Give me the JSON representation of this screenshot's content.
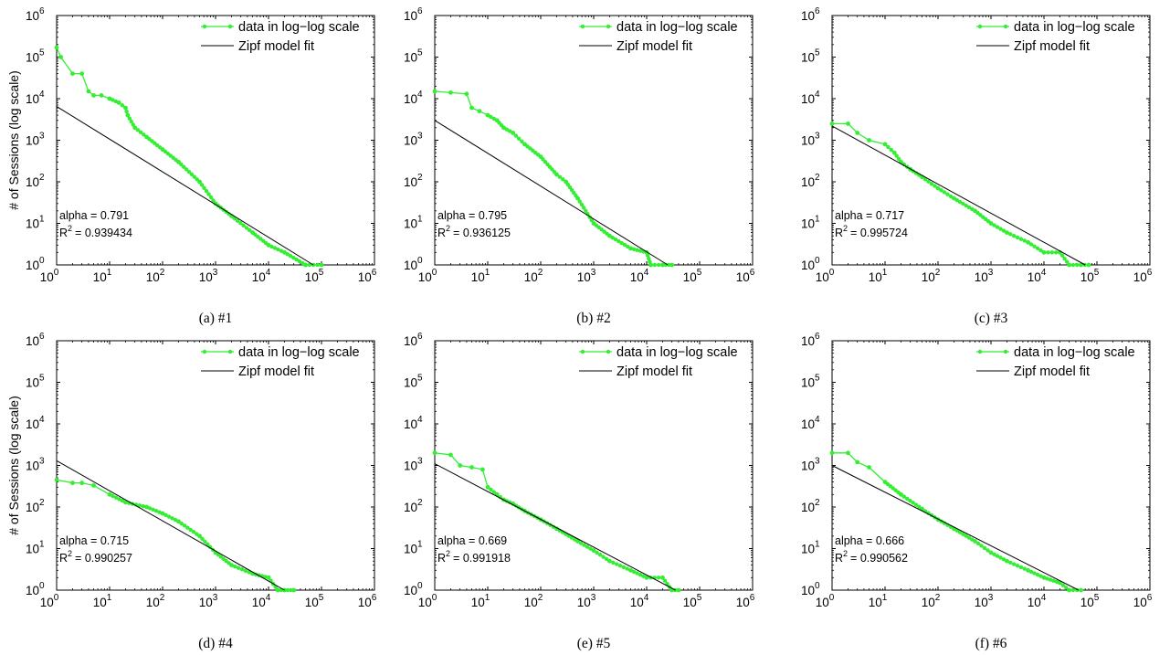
{
  "colors": {
    "data": "#33ee33",
    "fit": "#000000"
  },
  "chart_data": [
    {
      "type": "line",
      "caption": "(a)  #1",
      "scale": "log-log",
      "ylabel": "# of Sessions (log scale)",
      "xlim": [
        1,
        1000000
      ],
      "ylim": [
        1,
        1000000
      ],
      "legend": {
        "placement": "top-right",
        "data_label": "data in log−log scale",
        "fit_label": "Zipf model fit"
      },
      "annotation": {
        "alpha": "alpha = 0.791",
        "r2_prefix": "R",
        "r2_value": "= 0.939434"
      },
      "series": [
        {
          "name": "data in log−log scale",
          "x": [
            1,
            1.2,
            2,
            3,
            4,
            5,
            7,
            10,
            15,
            20,
            22,
            30,
            50,
            100,
            200,
            500,
            1000,
            2000,
            5000,
            10000,
            20000,
            50000,
            100000
          ],
          "y": [
            170000,
            100000,
            40000,
            40000,
            15000,
            12000,
            12000,
            10000,
            8000,
            6000,
            4000,
            2000,
            1200,
            600,
            300,
            100,
            30,
            15,
            6,
            3,
            2,
            1,
            1
          ]
        },
        {
          "name": "Zipf model fit",
          "x": [
            1,
            70000
          ],
          "y": [
            6500,
            1
          ]
        }
      ]
    },
    {
      "type": "line",
      "caption": "(b)  #2",
      "scale": "log-log",
      "ylabel": "",
      "xlim": [
        1,
        1000000
      ],
      "ylim": [
        1,
        1000000
      ],
      "legend": {
        "placement": "top-right",
        "data_label": "data in log−log scale",
        "fit_label": "Zipf model fit"
      },
      "annotation": {
        "alpha": "alpha = 0.795",
        "r2_prefix": "R",
        "r2_value": "= 0.936125"
      },
      "series": [
        {
          "name": "data in log−log scale",
          "x": [
            1,
            2,
            4,
            5,
            7,
            10,
            15,
            20,
            30,
            50,
            100,
            200,
            300,
            500,
            1000,
            2000,
            5000,
            10000,
            12000,
            20000,
            30000
          ],
          "y": [
            15000,
            14000,
            13000,
            6000,
            5000,
            4000,
            3000,
            2000,
            1500,
            800,
            400,
            150,
            100,
            40,
            10,
            5,
            2.5,
            2,
            1,
            1,
            1
          ]
        },
        {
          "name": "Zipf model fit",
          "x": [
            1,
            25000
          ],
          "y": [
            3000,
            1
          ]
        }
      ]
    },
    {
      "type": "line",
      "caption": "(c)  #3",
      "scale": "log-log",
      "ylabel": "",
      "xlim": [
        1,
        1000000
      ],
      "ylim": [
        1,
        1000000
      ],
      "legend": {
        "placement": "top-right",
        "data_label": "data in log−log scale",
        "fit_label": "Zipf model fit"
      },
      "annotation": {
        "alpha": "alpha = 0.717",
        "r2_prefix": "R",
        "r2_value": "= 0.995724"
      },
      "series": [
        {
          "name": "data in log−log scale",
          "x": [
            1,
            2,
            3,
            5,
            10,
            15,
            20,
            30,
            50,
            100,
            200,
            500,
            1000,
            2000,
            5000,
            10000,
            20000,
            30000,
            50000,
            70000
          ],
          "y": [
            2500,
            2500,
            1500,
            1000,
            800,
            500,
            300,
            200,
            130,
            70,
            40,
            20,
            10,
            6,
            3.5,
            2,
            2,
            1,
            1,
            1
          ]
        },
        {
          "name": "Zipf model fit",
          "x": [
            1,
            60000
          ],
          "y": [
            2200,
            1
          ]
        }
      ]
    },
    {
      "type": "line",
      "caption": "(d)  #4",
      "scale": "log-log",
      "ylabel": "# of Sessions (log scale)",
      "xlim": [
        1,
        1000000
      ],
      "ylim": [
        1,
        1000000
      ],
      "legend": {
        "placement": "top-right",
        "data_label": "data in log−log scale",
        "fit_label": "Zipf model fit"
      },
      "annotation": {
        "alpha": "alpha = 0.715",
        "r2_prefix": "R",
        "r2_value": "= 0.990257"
      },
      "series": [
        {
          "name": "data in log−log scale",
          "x": [
            1,
            2,
            3,
            5,
            10,
            20,
            50,
            100,
            200,
            500,
            1000,
            2000,
            5000,
            10000,
            15000,
            20000,
            30000
          ],
          "y": [
            450,
            380,
            380,
            330,
            200,
            130,
            100,
            70,
            45,
            20,
            8,
            4,
            2.5,
            2,
            1,
            1,
            1
          ]
        },
        {
          "name": "Zipf model fit",
          "x": [
            1,
            20000
          ],
          "y": [
            1300,
            1
          ]
        }
      ]
    },
    {
      "type": "line",
      "caption": "(e)  #5",
      "scale": "log-log",
      "ylabel": "",
      "xlim": [
        1,
        1000000
      ],
      "ylim": [
        1,
        1000000
      ],
      "legend": {
        "placement": "top-right",
        "data_label": "data in log−log scale",
        "fit_label": "Zipf model fit"
      },
      "annotation": {
        "alpha": "alpha = 0.669",
        "r2_prefix": "R",
        "r2_value": "= 0.991918"
      },
      "series": [
        {
          "name": "data in log−log scale",
          "x": [
            1,
            2,
            3,
            5,
            8,
            10,
            15,
            20,
            30,
            50,
            100,
            200,
            500,
            1000,
            2000,
            5000,
            10000,
            20000,
            30000,
            40000
          ],
          "y": [
            2000,
            1800,
            1000,
            900,
            800,
            300,
            200,
            150,
            120,
            80,
            50,
            30,
            15,
            9,
            5,
            3,
            2,
            2,
            1,
            1
          ]
        },
        {
          "name": "Zipf model fit",
          "x": [
            1,
            35000
          ],
          "y": [
            1100,
            1
          ]
        }
      ]
    },
    {
      "type": "line",
      "caption": "(f)  #6",
      "scale": "log-log",
      "ylabel": "",
      "xlim": [
        1,
        1000000
      ],
      "ylim": [
        1,
        1000000
      ],
      "legend": {
        "placement": "top-right",
        "data_label": "data in log−log scale",
        "fit_label": "Zipf model fit"
      },
      "annotation": {
        "alpha": "alpha = 0.666",
        "r2_prefix": "R",
        "r2_value": "= 0.990562"
      },
      "series": [
        {
          "name": "data in log−log scale",
          "x": [
            1,
            2,
            3,
            5,
            10,
            20,
            50,
            100,
            200,
            500,
            1000,
            2000,
            5000,
            10000,
            20000,
            30000,
            50000
          ],
          "y": [
            2000,
            2000,
            1200,
            900,
            400,
            200,
            90,
            50,
            30,
            15,
            8,
            5,
            3,
            2,
            1.5,
            1,
            1
          ]
        },
        {
          "name": "Zipf model fit",
          "x": [
            1,
            45000
          ],
          "y": [
            1000,
            1
          ]
        }
      ]
    }
  ]
}
